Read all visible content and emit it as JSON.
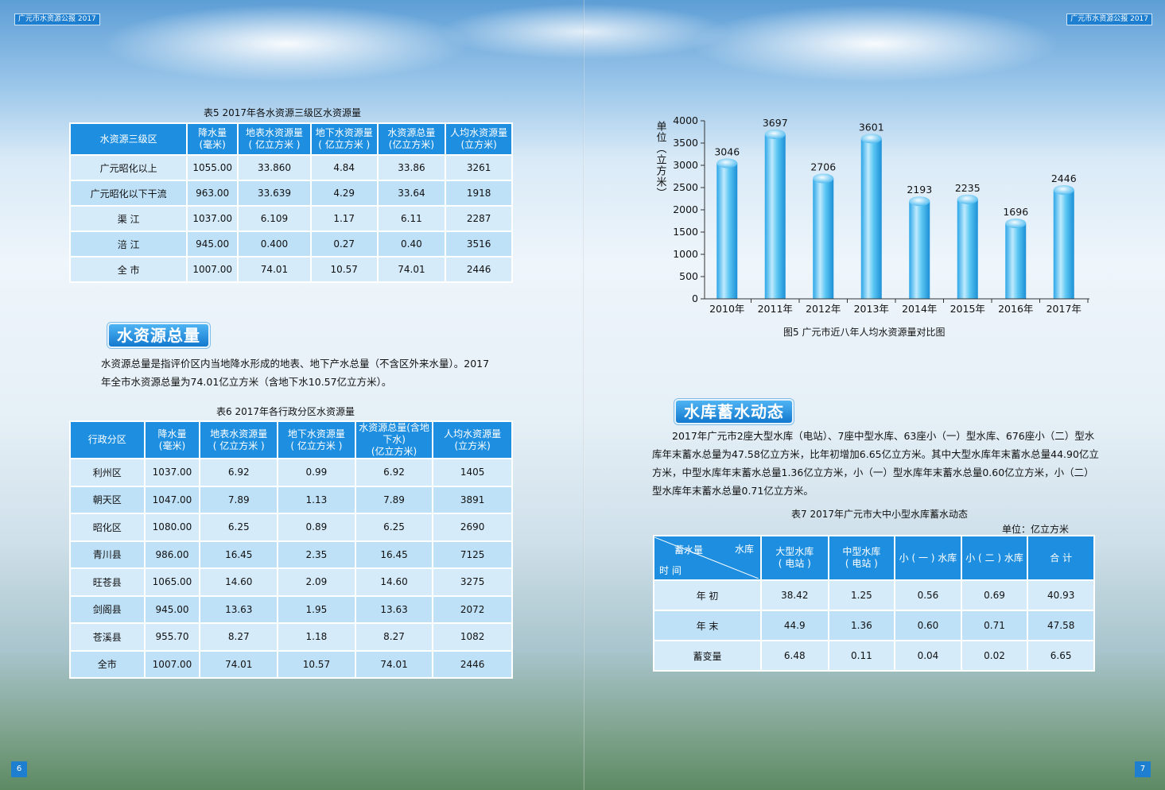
{
  "header": {
    "left_tag": "广元市水资源公报 2017",
    "right_tag": "广元市水资源公报 2017"
  },
  "page_numbers": {
    "left": "6",
    "right": "7"
  },
  "table5": {
    "caption": "表5   2017年各水资源三级区水资源量",
    "headers": [
      "水资源三级区",
      "降水量\n(毫米)",
      "地表水资源量\n( 亿立方米 )",
      "地下水资源量\n( 亿立方米 )",
      "水资源总量\n(亿立方米)",
      "人均水资源量\n(立方米)"
    ],
    "rows": [
      [
        "广元昭化以上",
        "1055.00",
        "33.860",
        "4.84",
        "33.86",
        "3261"
      ],
      [
        "广元昭化以下干流",
        "963.00",
        "33.639",
        "4.29",
        "33.64",
        "1918"
      ],
      [
        "渠 江",
        "1037.00",
        "6.109",
        "1.17",
        "6.11",
        "2287"
      ],
      [
        "涪 江",
        "945.00",
        "0.400",
        "0.27",
        "0.40",
        "3516"
      ],
      [
        "全 市",
        "1007.00",
        "74.01",
        "10.57",
        "74.01",
        "2446"
      ]
    ]
  },
  "section1": {
    "title": "水资源总量",
    "paragraph": "水资源总量是指评价区内当地降水形成的地表、地下产水总量（不含区外来水量）。2017年全市水资源总量为74.01亿立方米（含地下水10.57亿立方米）。"
  },
  "table6": {
    "caption": "表6   2017年各行政分区水资源量",
    "headers": [
      "行政分区",
      "降水量\n(毫米)",
      "地表水资源量\n( 亿立方米 )",
      "地下水资源量\n( 亿立方米 )",
      "水资源总量(含地下水)\n(亿立方米)",
      "人均水资源量\n(立方米)"
    ],
    "rows": [
      [
        "利州区",
        "1037.00",
        "6.92",
        "0.99",
        "6.92",
        "1405"
      ],
      [
        "朝天区",
        "1047.00",
        "7.89",
        "1.13",
        "7.89",
        "3891"
      ],
      [
        "昭化区",
        "1080.00",
        "6.25",
        "0.89",
        "6.25",
        "2690"
      ],
      [
        "青川县",
        "986.00",
        "16.45",
        "2.35",
        "16.45",
        "7125"
      ],
      [
        "旺苍县",
        "1065.00",
        "14.60",
        "2.09",
        "14.60",
        "3275"
      ],
      [
        "剑阁县",
        "945.00",
        "13.63",
        "1.95",
        "13.63",
        "2072"
      ],
      [
        "苍溪县",
        "955.70",
        "8.27",
        "1.18",
        "8.27",
        "1082"
      ],
      [
        "全市",
        "1007.00",
        "74.01",
        "10.57",
        "74.01",
        "2446"
      ]
    ]
  },
  "chart_data": {
    "type": "bar",
    "title": "",
    "ylabel": "单位（立方米）",
    "xlabel": "",
    "categories": [
      "2010年",
      "2011年",
      "2012年",
      "2013年",
      "2014年",
      "2015年",
      "2016年",
      "2017年"
    ],
    "values": [
      3046,
      3697,
      2706,
      3601,
      2193,
      2235,
      1696,
      2446
    ],
    "ylim": [
      0,
      4000
    ],
    "yticks": [
      0,
      500,
      1000,
      1500,
      2000,
      2500,
      3000,
      3500,
      4000
    ],
    "grid": false,
    "legend": "none",
    "bar_color": "#3db8f0"
  },
  "figure5_caption": "图5   广元市近八年人均水资源量对比图",
  "section2": {
    "title": "水库蓄水动态",
    "paragraph": "2017年广元市2座大型水库（电站）、7座中型水库、63座小（一）型水库、676座小（二）型水库年末蓄水总量为47.58亿立方米，比年初增加6.65亿立方米。其中大型水库年末蓄水总量44.90亿立方米，中型水库年末蓄水总量1.36亿立方米，小（一）型水库年末蓄水总量0.60亿立方米，小（二）型水库年末蓄水总量0.71亿立方米。"
  },
  "table7": {
    "caption": "表7   2017年广元市大中小型水库蓄水动态",
    "unit": "单位：亿立方米",
    "corner": {
      "top_left": "蓄水量",
      "top_right": "水库",
      "bottom_left": "时  间"
    },
    "headers": [
      "大型水库\n( 电站 )",
      "中型水库\n( 电站 )",
      "小 ( 一 ) 水库",
      "小 ( 二 ) 水库",
      "合 计"
    ],
    "rows": [
      [
        "年 初",
        "38.42",
        "1.25",
        "0.56",
        "0.69",
        "40.93"
      ],
      [
        "年 末",
        "44.9",
        "1.36",
        "0.60",
        "0.71",
        "47.58"
      ],
      [
        "蓄变量",
        "6.48",
        "0.11",
        "0.04",
        "0.02",
        "6.65"
      ]
    ]
  }
}
